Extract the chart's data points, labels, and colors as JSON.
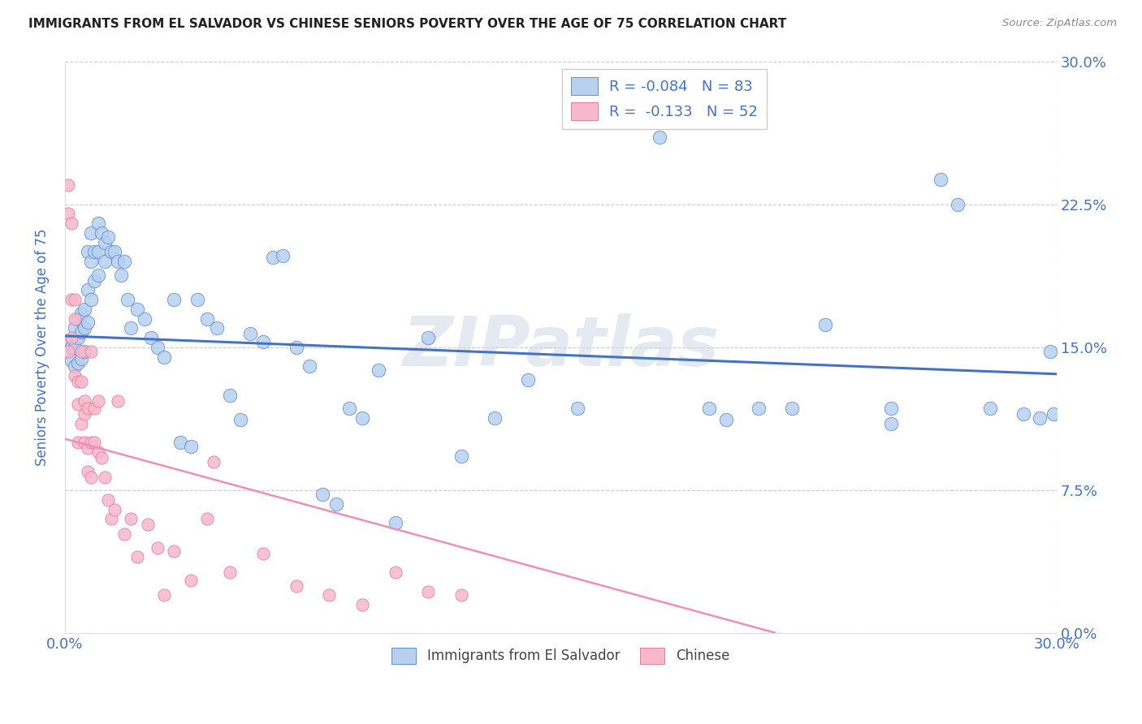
{
  "title": "IMMIGRANTS FROM EL SALVADOR VS CHINESE SENIORS POVERTY OVER THE AGE OF 75 CORRELATION CHART",
  "source": "Source: ZipAtlas.com",
  "ylabel": "Seniors Poverty Over the Age of 75",
  "xlim": [
    0.0,
    0.3
  ],
  "ylim": [
    0.0,
    0.3
  ],
  "yticks": [
    0.0,
    0.075,
    0.15,
    0.225,
    0.3
  ],
  "ytick_labels": [
    "0.0%",
    "7.5%",
    "15.0%",
    "22.5%",
    "30.0%"
  ],
  "xtick_labels": [
    "0.0%",
    "30.0%"
  ],
  "legend_r1": "R = -0.084",
  "legend_n1": "N = 83",
  "legend_r2": "R =  -0.133",
  "legend_n2": "N = 52",
  "color_blue_fill": "#b8d0f0",
  "color_blue_edge": "#6090d0",
  "color_pink_fill": "#f8b8cc",
  "color_pink_edge": "#e080a0",
  "color_blue_line": "#4472c4",
  "color_pink_line": "#f090b0",
  "color_axis_text": "#4472c4",
  "watermark": "ZIPatlas",
  "blue_x": [
    0.001,
    0.002,
    0.002,
    0.003,
    0.003,
    0.003,
    0.004,
    0.004,
    0.004,
    0.005,
    0.005,
    0.005,
    0.006,
    0.006,
    0.006,
    0.007,
    0.007,
    0.007,
    0.008,
    0.008,
    0.008,
    0.009,
    0.009,
    0.01,
    0.01,
    0.01,
    0.011,
    0.012,
    0.012,
    0.013,
    0.014,
    0.015,
    0.016,
    0.017,
    0.018,
    0.019,
    0.02,
    0.022,
    0.024,
    0.026,
    0.028,
    0.03,
    0.033,
    0.035,
    0.038,
    0.04,
    0.043,
    0.046,
    0.05,
    0.053,
    0.056,
    0.06,
    0.063,
    0.066,
    0.07,
    0.074,
    0.078,
    0.082,
    0.086,
    0.09,
    0.095,
    0.1,
    0.11,
    0.12,
    0.13,
    0.14,
    0.155,
    0.165,
    0.18,
    0.195,
    0.21,
    0.23,
    0.25,
    0.265,
    0.27,
    0.28,
    0.29,
    0.295,
    0.298,
    0.299,
    0.25,
    0.22,
    0.2
  ],
  "blue_y": [
    0.152,
    0.15,
    0.143,
    0.16,
    0.15,
    0.14,
    0.165,
    0.155,
    0.142,
    0.168,
    0.158,
    0.144,
    0.17,
    0.16,
    0.148,
    0.2,
    0.18,
    0.163,
    0.21,
    0.195,
    0.175,
    0.2,
    0.185,
    0.215,
    0.2,
    0.188,
    0.21,
    0.205,
    0.195,
    0.208,
    0.2,
    0.2,
    0.195,
    0.188,
    0.195,
    0.175,
    0.16,
    0.17,
    0.165,
    0.155,
    0.15,
    0.145,
    0.175,
    0.1,
    0.098,
    0.175,
    0.165,
    0.16,
    0.125,
    0.112,
    0.157,
    0.153,
    0.197,
    0.198,
    0.15,
    0.14,
    0.073,
    0.068,
    0.118,
    0.113,
    0.138,
    0.058,
    0.155,
    0.093,
    0.113,
    0.133,
    0.118,
    0.275,
    0.26,
    0.118,
    0.118,
    0.162,
    0.118,
    0.238,
    0.225,
    0.118,
    0.115,
    0.113,
    0.148,
    0.115,
    0.11,
    0.118,
    0.112
  ],
  "pink_x": [
    0.001,
    0.001,
    0.001,
    0.002,
    0.002,
    0.002,
    0.003,
    0.003,
    0.003,
    0.004,
    0.004,
    0.004,
    0.005,
    0.005,
    0.005,
    0.006,
    0.006,
    0.006,
    0.007,
    0.007,
    0.007,
    0.008,
    0.008,
    0.008,
    0.009,
    0.009,
    0.01,
    0.01,
    0.011,
    0.012,
    0.013,
    0.014,
    0.015,
    0.016,
    0.018,
    0.02,
    0.022,
    0.025,
    0.028,
    0.033,
    0.038,
    0.043,
    0.05,
    0.06,
    0.07,
    0.08,
    0.09,
    0.1,
    0.11,
    0.12,
    0.045,
    0.03
  ],
  "pink_y": [
    0.235,
    0.22,
    0.148,
    0.215,
    0.175,
    0.155,
    0.175,
    0.165,
    0.135,
    0.132,
    0.12,
    0.1,
    0.148,
    0.132,
    0.11,
    0.122,
    0.115,
    0.1,
    0.118,
    0.097,
    0.085,
    0.148,
    0.1,
    0.082,
    0.118,
    0.1,
    0.122,
    0.095,
    0.092,
    0.082,
    0.07,
    0.06,
    0.065,
    0.122,
    0.052,
    0.06,
    0.04,
    0.057,
    0.045,
    0.043,
    0.028,
    0.06,
    0.032,
    0.042,
    0.025,
    0.02,
    0.015,
    0.032,
    0.022,
    0.02,
    0.09,
    0.02
  ]
}
